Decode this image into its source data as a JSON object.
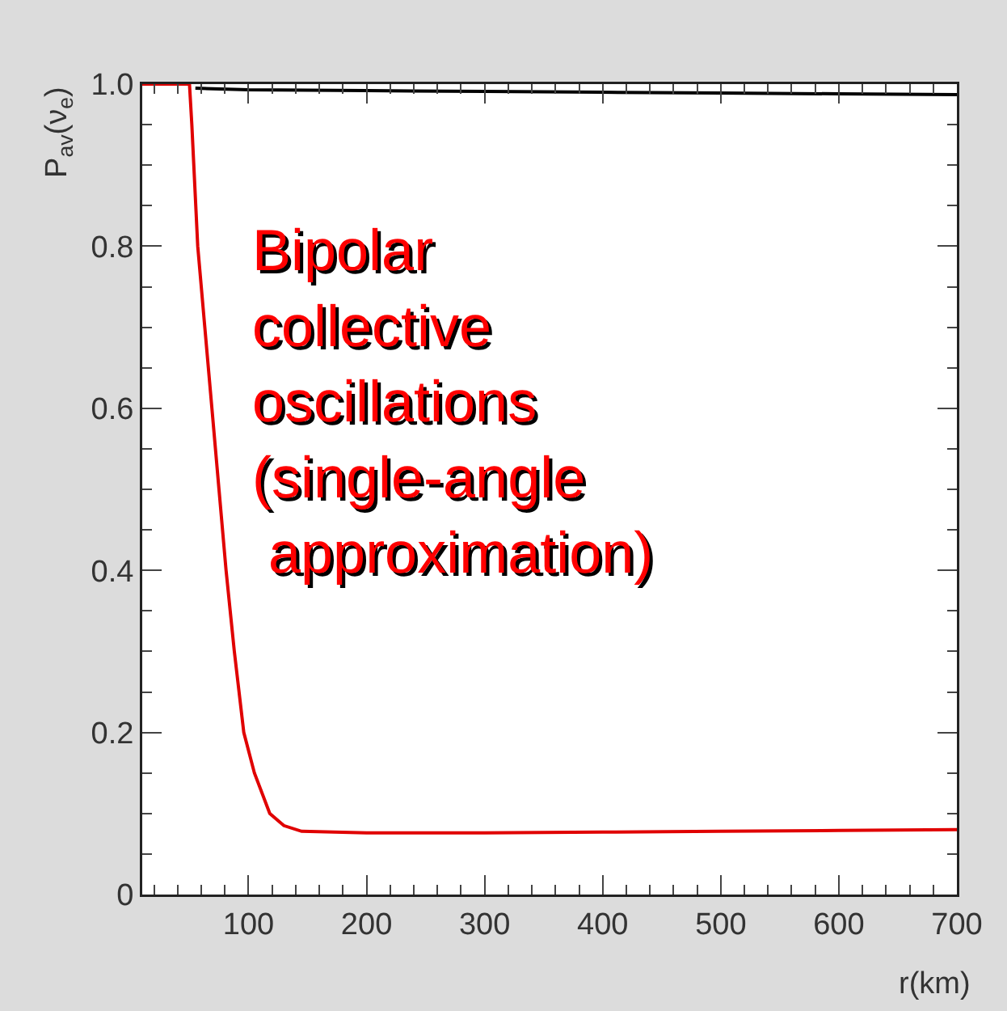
{
  "chart_data": {
    "type": "line",
    "xlabel": "r(km)",
    "ylabel": "P$_{av}$(ν$_{e}$)",
    "annotations": [
      "Bipolar\ncollective\noscillations\n(single-angle\n approximation)"
    ],
    "series": [
      {
        "color": "#000000",
        "x": [
          55,
          100,
          200,
          300,
          400,
          500,
          600,
          700
        ],
        "values": [
          0.995,
          0.993,
          0.992,
          0.991,
          0.99,
          0.989,
          0.988,
          0.987
        ]
      },
      {
        "color": "#e00000",
        "x": [
          10,
          50,
          52,
          57,
          63,
          69,
          75,
          81,
          88,
          96,
          105,
          118,
          130,
          145,
          200,
          300,
          400,
          500,
          600,
          700
        ],
        "values": [
          1,
          1,
          0.95,
          0.8,
          0.7,
          0.6,
          0.5,
          0.4,
          0.3,
          0.2,
          0.15,
          0.1,
          0.085,
          0.078,
          0.076,
          0.076,
          0.077,
          0.078,
          0.079,
          0.08
        ]
      }
    ],
    "xlim": [
      10,
      700
    ],
    "xticks": [
      100,
      200,
      300,
      400,
      500,
      600,
      700
    ],
    "ylim": [
      0,
      1.0
    ],
    "yticks": [
      0,
      0.2,
      0.4,
      0.6,
      0.8,
      {
        "value": 1,
        "label": "1.0"
      }
    ],
    "grid": false,
    "line_style": "solid",
    "marker": "none"
  }
}
